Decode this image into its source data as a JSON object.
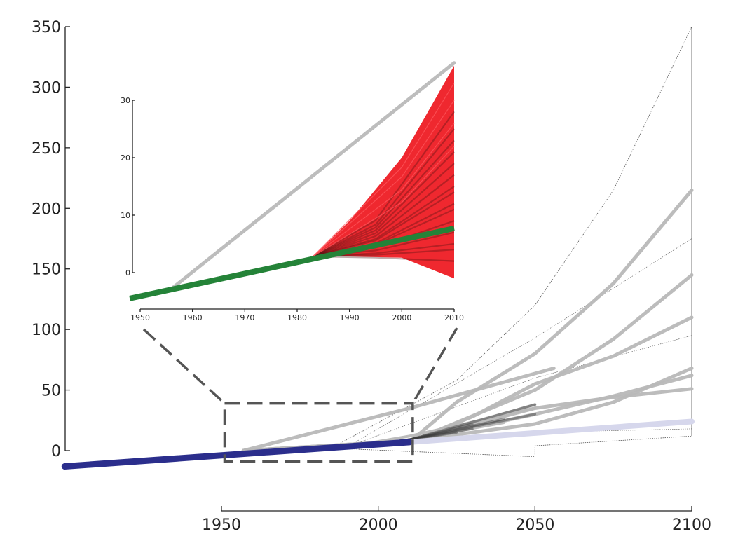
{
  "chart_data": [
    {
      "type": "line",
      "title": "",
      "xlabel": "",
      "ylabel": "",
      "xlim": [
        1900,
        2100
      ],
      "ylim": [
        0,
        350
      ],
      "x_ticks": [
        "1950",
        "2000",
        "2050",
        "2100"
      ],
      "y_ticks": [
        "0",
        "50",
        "100",
        "150",
        "200",
        "250",
        "300",
        "350"
      ],
      "grid": false,
      "legend": "none",
      "historical_series": {
        "color": "#2b2e8c",
        "x": [
          1900,
          2010
        ],
        "y": [
          -13,
          7
        ]
      },
      "projection_series_color": "#b8b8b8",
      "projection_series": [
        {
          "x": [
            1957,
            2010,
            2025,
            2050,
            2075,
            2100
          ],
          "y": [
            0,
            7,
            40,
            80,
            138,
            215
          ]
        },
        {
          "x": [
            1957,
            2010,
            2050,
            2075,
            2100
          ],
          "y": [
            0,
            7,
            50,
            92,
            145
          ]
        },
        {
          "x": [
            1957,
            2010,
            2030,
            2050,
            2075,
            2100
          ],
          "y": [
            0,
            7,
            28,
            55,
            78,
            110
          ]
        },
        {
          "x": [
            1957,
            2010,
            2056
          ],
          "y": [
            0,
            35,
            68
          ]
        },
        {
          "x": [
            1957,
            2010,
            2050,
            2075,
            2100
          ],
          "y": [
            0,
            8,
            22,
            40,
            68
          ]
        },
        {
          "x": [
            1957,
            2010,
            2050,
            2075,
            2100
          ],
          "y": [
            0,
            8,
            30,
            45,
            62
          ]
        },
        {
          "x": [
            1957,
            2010,
            2050,
            2075,
            2100
          ],
          "y": [
            0,
            8,
            35,
            44,
            51
          ]
        },
        {
          "x": [
            1990,
            2010,
            2050
          ],
          "y": [
            3,
            8,
            38
          ]
        },
        {
          "x": [
            1990,
            2010,
            2040
          ],
          "y": [
            3,
            9,
            23
          ]
        },
        {
          "x": [
            1990,
            2010,
            2050
          ],
          "y": [
            3,
            12,
            35
          ]
        }
      ],
      "low_scenario": {
        "color": "#d6d7ec",
        "x": [
          2010,
          2100
        ],
        "y": [
          7,
          24
        ]
      },
      "envelope_max": {
        "x": [
          1985,
          2025,
          2050,
          2075,
          2100
        ],
        "y": [
          2,
          58,
          120,
          215,
          350
        ]
      },
      "envelope_min": {
        "x": [
          1985,
          2050,
          2050,
          2100
        ],
        "y": [
          2,
          -5,
          4,
          12
        ]
      },
      "inner_envelopes": [
        {
          "x": [
            1990,
            2050,
            2100
          ],
          "y": [
            3,
            93,
            175
          ]
        },
        {
          "x": [
            1990,
            2050,
            2100
          ],
          "y": [
            3,
            60,
            95
          ]
        },
        {
          "x": [
            1990,
            2050,
            2100
          ],
          "y": [
            3,
            15,
            18
          ]
        }
      ],
      "zoom_box": {
        "x": [
          1951,
          2011
        ],
        "y": [
          -9,
          39
        ]
      }
    },
    {
      "type": "area",
      "title": "",
      "xlabel": "",
      "ylabel": "",
      "xlim": [
        1950,
        2010
      ],
      "ylim": [
        0,
        30
      ],
      "x_ticks": [
        "1950",
        "1960",
        "1970",
        "1980",
        "1990",
        "2000",
        "2010"
      ],
      "y_ticks": [
        "0",
        "10",
        "20",
        "30"
      ],
      "grid": false,
      "legend": "none",
      "observed_series": {
        "color": "#248338",
        "x": [
          1948,
          2010
        ],
        "y": [
          -4.5,
          7.7
        ]
      },
      "upper_bound_line": {
        "color": "#bdbdbd",
        "x": [
          1956,
          2010
        ],
        "y": [
          -2.8,
          36.5
        ]
      },
      "band": {
        "color": "#ee1c24",
        "x": [
          1983,
          1990,
          2000,
          2010
        ],
        "upper": [
          2.8,
          9,
          20,
          36
        ],
        "lower": [
          2.8,
          2.8,
          2.6,
          -1.0
        ]
      },
      "band_member_lines": {
        "color": "#4a1010",
        "end_values": [
          28,
          25,
          23,
          21,
          19,
          17,
          15,
          14,
          12,
          11,
          9,
          7,
          5,
          4,
          2
        ]
      }
    }
  ]
}
